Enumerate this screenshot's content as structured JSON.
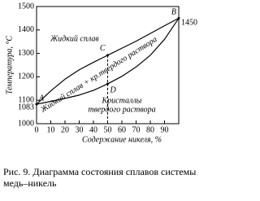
{
  "chart_data": {
    "type": "phase",
    "y_label": "Температура, °С",
    "x_label": "Содержание никеля, %",
    "xlim": [
      0,
      100
    ],
    "xticks": [
      0,
      10,
      20,
      30,
      40,
      50,
      60,
      70,
      80,
      90
    ],
    "ylim": [
      1000,
      1500
    ],
    "yticks": [
      1000,
      1100,
      1200,
      1300,
      1400,
      1500
    ],
    "x": [
      0,
      10,
      20,
      30,
      40,
      50,
      60,
      70,
      80,
      90,
      100
    ],
    "series": [
      {
        "color": "#000000",
        "values": [
          1083,
          1140,
          1190,
          1230,
          1262,
          1292,
          1322,
          1352,
          1385,
          1418,
          1450
        ]
      },
      {
        "color": "#000000",
        "values": [
          1083,
          1095,
          1108,
          1122,
          1142,
          1170,
          1202,
          1242,
          1292,
          1360,
          1450
        ]
      }
    ],
    "points": [
      {
        "label": "A",
        "x": 0,
        "y": 1083
      },
      {
        "label": "B",
        "x": 100,
        "y": 1450
      },
      {
        "label": "C",
        "x": 50,
        "y": 1292
      },
      {
        "label": "D",
        "x": 50,
        "y": 1170
      }
    ],
    "regions": [
      "Жидкий сплав",
      "Жидкий сплав + кр.твердого раствора",
      "Кристаллы",
      "твердого раствора"
    ],
    "caption": "Рис. 9. Диаграмма состояния сплавов системы медь–никель"
  }
}
